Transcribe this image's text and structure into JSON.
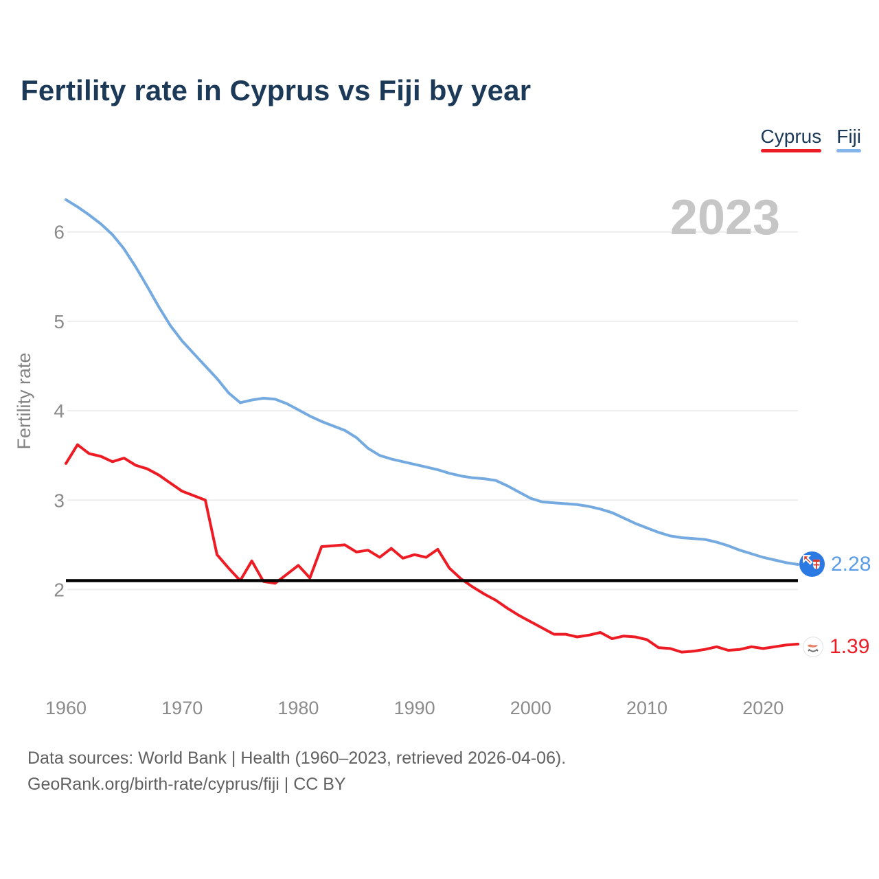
{
  "title": "Fertility rate in Cyprus vs Fiji by year",
  "watermark": "2023",
  "legend": {
    "items": [
      {
        "label": "Cyprus",
        "color": "#ed1c24"
      },
      {
        "label": "Fiji",
        "color": "#85b4ea"
      }
    ]
  },
  "end_labels": {
    "fiji": {
      "value": "2.28",
      "color": "#5b9ce6",
      "icon": "fiji-flag-icon"
    },
    "cyprus": {
      "value": "1.39",
      "color": "#ed1c24",
      "icon": "cyprus-flag-icon"
    }
  },
  "footer": {
    "line1": "Data sources: World Bank | Health (1960–2023, retrieved 2026-04-06).",
    "line2": "GeoRank.org/birth-rate/cyprus/fiji | CC BY"
  },
  "axes": {
    "y_title": "Fertility rate",
    "y_ticks": [
      "2",
      "3",
      "4",
      "5",
      "6"
    ],
    "x_ticks": [
      "1960",
      "1970",
      "1980",
      "1990",
      "2000",
      "2010",
      "2020"
    ],
    "tick_color": "#8b8b8b",
    "grid_color": "#ededed",
    "watermark_color": "#c6c6c6"
  },
  "chart_data": {
    "type": "line",
    "title": "Fertility rate in Cyprus vs Fiji by year",
    "xlabel": "",
    "ylabel": "Fertility rate",
    "x_ticks": [
      1960,
      1970,
      1980,
      1990,
      2000,
      2010,
      2020
    ],
    "y_ticks": [
      2,
      3,
      4,
      5,
      6
    ],
    "xlim": [
      1960,
      2023
    ],
    "ylim": [
      1.0,
      6.6
    ],
    "grid": "horizontal-only",
    "legend_position": "top-right",
    "reference_line": {
      "value": 2.1,
      "color": "#000000"
    },
    "years": [
      1960,
      1961,
      1962,
      1963,
      1964,
      1965,
      1966,
      1967,
      1968,
      1969,
      1970,
      1971,
      1972,
      1973,
      1974,
      1975,
      1976,
      1977,
      1978,
      1979,
      1980,
      1981,
      1982,
      1983,
      1984,
      1985,
      1986,
      1987,
      1988,
      1989,
      1990,
      1991,
      1992,
      1993,
      1994,
      1995,
      1996,
      1997,
      1998,
      1999,
      2000,
      2001,
      2002,
      2003,
      2004,
      2005,
      2006,
      2007,
      2008,
      2009,
      2010,
      2011,
      2012,
      2013,
      2014,
      2015,
      2016,
      2017,
      2018,
      2019,
      2020,
      2021,
      2022,
      2023
    ],
    "series": [
      {
        "name": "Fiji",
        "color": "#74aadf",
        "end_label": "2.28",
        "final_value": 2.28,
        "values": [
          6.36,
          6.28,
          6.19,
          6.09,
          5.97,
          5.81,
          5.61,
          5.39,
          5.16,
          4.95,
          4.78,
          4.64,
          4.5,
          4.36,
          4.2,
          4.09,
          4.12,
          4.14,
          4.13,
          4.08,
          4.01,
          3.94,
          3.88,
          3.83,
          3.78,
          3.7,
          3.58,
          3.5,
          3.46,
          3.43,
          3.4,
          3.37,
          3.34,
          3.3,
          3.27,
          3.25,
          3.24,
          3.22,
          3.16,
          3.09,
          3.02,
          2.98,
          2.97,
          2.96,
          2.95,
          2.93,
          2.9,
          2.86,
          2.8,
          2.74,
          2.69,
          2.64,
          2.6,
          2.58,
          2.57,
          2.56,
          2.53,
          2.49,
          2.44,
          2.4,
          2.36,
          2.33,
          2.3,
          2.28
        ]
      },
      {
        "name": "Cyprus",
        "color": "#ed1c24",
        "end_label": "1.39",
        "final_value": 1.39,
        "values": [
          3.41,
          3.62,
          3.52,
          3.49,
          3.43,
          3.47,
          3.39,
          3.35,
          3.28,
          3.19,
          3.1,
          3.05,
          3.0,
          2.39,
          2.24,
          2.1,
          2.32,
          2.09,
          2.07,
          2.17,
          2.27,
          2.13,
          2.48,
          2.49,
          2.5,
          2.42,
          2.44,
          2.36,
          2.46,
          2.35,
          2.39,
          2.36,
          2.45,
          2.24,
          2.12,
          2.03,
          1.95,
          1.88,
          1.79,
          1.71,
          1.64,
          1.57,
          1.5,
          1.5,
          1.47,
          1.49,
          1.52,
          1.45,
          1.48,
          1.47,
          1.44,
          1.35,
          1.34,
          1.3,
          1.31,
          1.33,
          1.36,
          1.32,
          1.33,
          1.36,
          1.34,
          1.36,
          1.38,
          1.39
        ]
      }
    ]
  }
}
